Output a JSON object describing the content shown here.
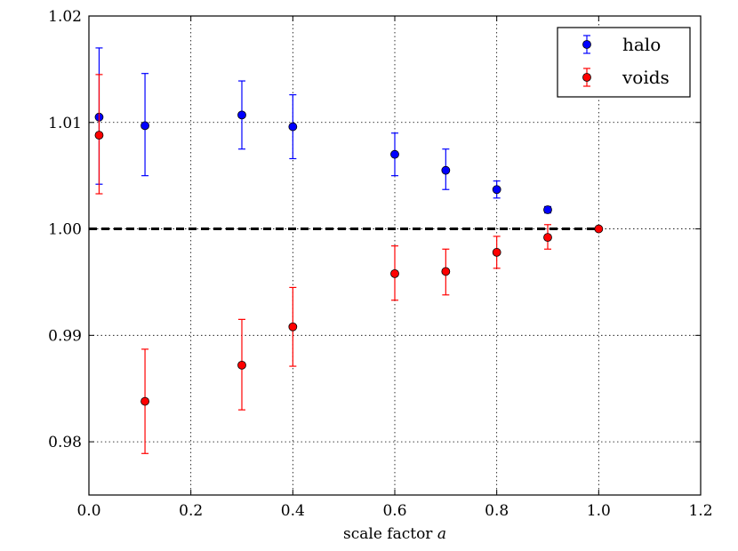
{
  "chart_data": {
    "type": "scatter",
    "title": "",
    "xlabel": "scale factor",
    "xlabel_var": "a",
    "ylabel": "",
    "xlim": [
      0.0,
      1.2
    ],
    "ylim": [
      0.975,
      1.02
    ],
    "xticks": [
      "0.0",
      "0.2",
      "0.4",
      "0.6",
      "0.8",
      "1.0",
      "1.2"
    ],
    "yticks": [
      "0.98",
      "0.99",
      "1.00",
      "1.01",
      "1.02"
    ],
    "grid": true,
    "legend_position": "top-right",
    "reference_line": 1.0,
    "series": [
      {
        "name": "halo",
        "color": "#0000ff",
        "x": [
          0.02,
          0.11,
          0.3,
          0.4,
          0.6,
          0.7,
          0.8,
          0.9
        ],
        "y": [
          1.0105,
          1.0097,
          1.0107,
          1.0096,
          1.007,
          1.0055,
          1.0037,
          1.0018
        ],
        "err_low": [
          1.0042,
          1.005,
          1.0075,
          1.0066,
          1.005,
          1.0037,
          1.0029,
          1.0015
        ],
        "err_high": [
          1.017,
          1.0146,
          1.0139,
          1.0126,
          1.009,
          1.0075,
          1.0045,
          1.0021
        ]
      },
      {
        "name": "voids",
        "color": "#ff0000",
        "x": [
          0.02,
          0.11,
          0.3,
          0.4,
          0.6,
          0.7,
          0.8,
          0.9,
          1.0
        ],
        "y": [
          1.0088,
          0.9838,
          0.9872,
          0.9908,
          0.9958,
          0.996,
          0.9978,
          0.9992,
          1.0
        ],
        "err_low": [
          1.0033,
          0.9789,
          0.983,
          0.9871,
          0.9933,
          0.9938,
          0.9963,
          0.9981,
          1.0
        ],
        "err_high": [
          1.0145,
          0.9887,
          0.9915,
          0.9945,
          0.9984,
          0.9981,
          0.9993,
          1.0004,
          1.0
        ]
      }
    ]
  }
}
